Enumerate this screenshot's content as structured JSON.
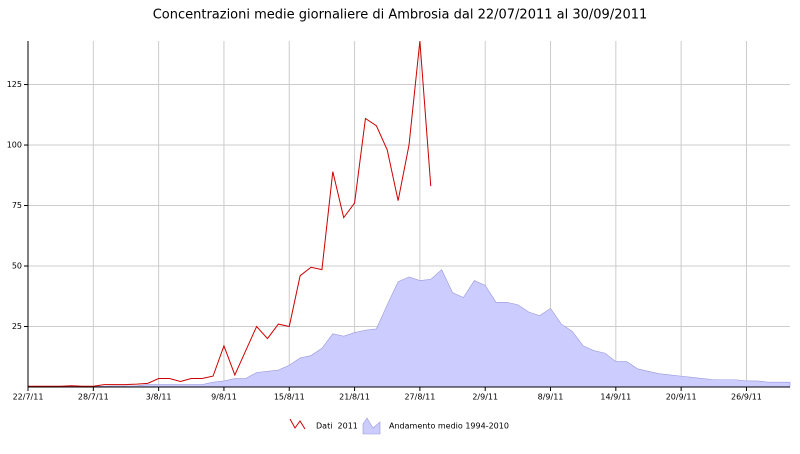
{
  "chart_data": {
    "type": "line-area",
    "title": "Concentrazioni medie giornaliere di Ambrosia dal 22/07/2011 al 30/09/2011",
    "categories": [
      "22/7/11",
      null,
      null,
      null,
      null,
      null,
      "28/7/11",
      null,
      null,
      null,
      null,
      null,
      "3/8/11",
      null,
      null,
      null,
      null,
      null,
      "9/8/11",
      null,
      null,
      null,
      null,
      null,
      "15/8/11",
      null,
      null,
      null,
      null,
      null,
      "21/8/11",
      null,
      null,
      null,
      null,
      null,
      "27/8/11",
      null,
      null,
      null,
      null,
      null,
      "2/9/11",
      null,
      null,
      null,
      null,
      null,
      "8/9/11",
      null,
      null,
      null,
      null,
      null,
      "14/9/11",
      null,
      null,
      null,
      null,
      null,
      "20/9/11",
      null,
      null,
      null,
      null,
      null,
      "26/9/11",
      null,
      null,
      null,
      null
    ],
    "series": [
      {
        "name": "Dati  2011",
        "kind": "line",
        "color": "#cc0000",
        "values": [
          0.3,
          0.3,
          0.3,
          0.3,
          0.5,
          0.3,
          0.3,
          1,
          1,
          1,
          1.2,
          1.5,
          3.5,
          3.5,
          2.3,
          3.5,
          3.5,
          4.5,
          17,
          5,
          15,
          25,
          20,
          26,
          25,
          46,
          49.5,
          48.5,
          89,
          70,
          76,
          111,
          108,
          98,
          77,
          100,
          143,
          83,
          null,
          null,
          null,
          null,
          null,
          null,
          null,
          null,
          null,
          null,
          null,
          null,
          null,
          null,
          null,
          null,
          null,
          null,
          null,
          null,
          null,
          null,
          null,
          null,
          null,
          null,
          null,
          null,
          null,
          null,
          null,
          null,
          null
        ]
      },
      {
        "name": "Andamento medio 1994-2010",
        "kind": "area",
        "color": "#ccccff",
        "values": [
          0.3,
          0.3,
          0.3,
          0.3,
          0.3,
          0.3,
          0.3,
          0.3,
          0.4,
          0.4,
          0.5,
          1,
          1,
          1,
          1,
          1,
          1,
          2,
          2.5,
          3.5,
          3.5,
          6,
          6.5,
          7,
          9,
          12,
          13,
          16,
          22,
          21,
          22.5,
          23.5,
          24,
          34,
          43.5,
          45.5,
          44,
          44.5,
          48.5,
          39,
          37,
          44,
          42,
          35,
          35,
          34,
          31,
          29.5,
          32.5,
          26,
          23,
          17,
          15,
          14,
          10.5,
          10.5,
          7.5,
          6.5,
          5.5,
          5,
          4.5,
          4,
          3.5,
          3,
          3,
          3,
          2.5,
          2.5,
          2,
          2,
          2
        ]
      }
    ],
    "ylim": [
      0,
      143
    ],
    "yticks": [
      25,
      50,
      75,
      100,
      125
    ],
    "grid": true
  }
}
